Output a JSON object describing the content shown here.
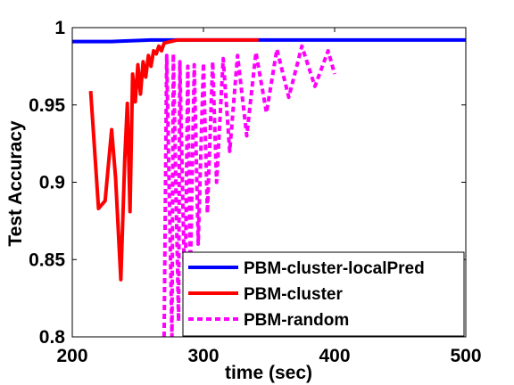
{
  "chart_data": {
    "type": "line",
    "title": "",
    "xlabel": "time (sec)",
    "ylabel": "Test Accuracy",
    "xlim": [
      200,
      500
    ],
    "ylim": [
      0.8,
      1.0
    ],
    "xticks": [
      200,
      300,
      400,
      500
    ],
    "xtick_labels": [
      "200",
      "300",
      "400",
      "500"
    ],
    "yticks": [
      0.8,
      0.85,
      0.9,
      0.95,
      1.0
    ],
    "ytick_labels": [
      "0.8",
      "0.85",
      "0.9",
      "0.95",
      "1"
    ],
    "grid": false,
    "legend_position": "bottom-right",
    "series": [
      {
        "name": "PBM-cluster-localPred",
        "color": "#0000ff",
        "style": "solid",
        "x": [
          200,
          230,
          260,
          300,
          350,
          400,
          450,
          500
        ],
        "y": [
          0.991,
          0.991,
          0.992,
          0.992,
          0.992,
          0.992,
          0.992,
          0.992
        ]
      },
      {
        "name": "PBM-cluster",
        "color": "#ff0000",
        "style": "solid",
        "x": [
          214,
          220,
          225,
          230,
          233,
          237,
          240,
          242,
          244,
          246,
          248,
          250,
          252,
          254,
          256,
          258,
          260,
          262,
          264,
          266,
          268,
          270,
          275,
          280,
          290,
          300,
          310,
          320,
          330,
          342
        ],
        "y": [
          0.959,
          0.883,
          0.888,
          0.934,
          0.903,
          0.837,
          0.915,
          0.951,
          0.881,
          0.97,
          0.952,
          0.976,
          0.957,
          0.978,
          0.968,
          0.982,
          0.975,
          0.985,
          0.983,
          0.988,
          0.985,
          0.99,
          0.991,
          0.992,
          0.992,
          0.992,
          0.992,
          0.992,
          0.992,
          0.992
        ]
      },
      {
        "name": "PBM-random",
        "color": "#ff00ff",
        "style": "dashed",
        "x": [
          270,
          272,
          276,
          277,
          281,
          282,
          286,
          288,
          290,
          293,
          296,
          300,
          303,
          307,
          310,
          315,
          320,
          326,
          333,
          340,
          348,
          356,
          365,
          375,
          385,
          395,
          400
        ],
        "y": [
          0.8,
          0.982,
          0.8,
          0.983,
          0.81,
          0.978,
          0.82,
          0.975,
          0.84,
          0.976,
          0.86,
          0.977,
          0.88,
          0.978,
          0.9,
          0.98,
          0.92,
          0.982,
          0.93,
          0.984,
          0.945,
          0.986,
          0.955,
          0.988,
          0.962,
          0.985,
          0.97
        ]
      }
    ]
  }
}
